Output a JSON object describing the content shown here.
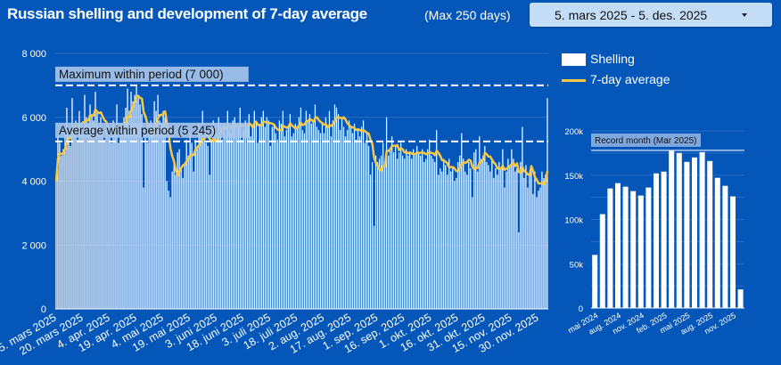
{
  "header": {
    "title": "Russian shelling and development of 7-day average",
    "note": "(Max 250 days)",
    "date_range": "5. mars 2025 - 5. des. 2025",
    "dropdown_icon": "caret-down-icon"
  },
  "legend": {
    "shelling": "Shelling",
    "average": "7-day average"
  },
  "colors": {
    "background": "#0457b9",
    "bars": "#ffffff",
    "average": "#f7c846",
    "dropdown": "#c3ddf7"
  },
  "chart_data": [
    {
      "type": "bar",
      "subtype": "daily bars with 7-day average line",
      "start_date": "2025-03-05",
      "end_date": "2025-12-05",
      "ylim": [
        0,
        8000
      ],
      "yticks": [
        "8 000",
        "6 000",
        "4 000",
        "2 000",
        "0"
      ],
      "yticks_values": [
        8000,
        6000,
        4000,
        2000,
        0
      ],
      "xticks": [
        "5. mars 2025",
        "20. mars 2025",
        "4. apr. 2025",
        "19. apr. 2025",
        "4. mai 2025",
        "19. mai 2025",
        "3. juni 2025",
        "18. juni 2025",
        "3. juli 2025",
        "18. juli 2025",
        "2. aug. 2025",
        "17. aug. 2025",
        "1. sep. 2025",
        "16. sep. 2025",
        "1. okt. 2025",
        "16. okt. 2025",
        "31. okt. 2025",
        "15. nov. 2025",
        "30. nov. 2025"
      ],
      "reference_lines": [
        {
          "label": "Maximum within period (7 000)",
          "value": 7000
        },
        {
          "label": "Average within period (5 245)",
          "value": 5245
        }
      ],
      "grid": true,
      "legend_position": "right",
      "series": [
        {
          "name": "Shelling",
          "values": [
            4000,
            5400,
            5200,
            4800,
            5000,
            5600,
            6300,
            5400,
            5100,
            6600,
            5600,
            5900,
            5300,
            6200,
            5800,
            5500,
            6700,
            6000,
            5800,
            6400,
            6100,
            5900,
            6800,
            6200,
            5700,
            6000,
            5500,
            5300,
            5600,
            5400,
            5700,
            5200,
            5900,
            5500,
            6400,
            5200,
            5800,
            5600,
            6000,
            6300,
            6900,
            6200,
            6800,
            6500,
            6700,
            7000,
            6600,
            6400,
            6100,
            3800,
            5600,
            5200,
            5800,
            5900,
            5500,
            6500,
            6200,
            6700,
            5900,
            5800,
            6200,
            6000,
            4000,
            3700,
            3500,
            4300,
            4600,
            4200,
            4900,
            5000,
            4400,
            4100,
            4500,
            5300,
            4800,
            5500,
            5200,
            4300,
            5300,
            5000,
            5800,
            5400,
            6200,
            5300,
            5200,
            5100,
            4200,
            5300,
            5900,
            5700,
            5500,
            6000,
            5800,
            5300,
            5800,
            5400,
            6200,
            5600,
            5500,
            5900,
            6000,
            5400,
            5700,
            6300,
            5300,
            5600,
            5900,
            5800,
            6100,
            5400,
            5700,
            6200,
            5900,
            5200,
            5800,
            6000,
            6200,
            5700,
            6000,
            5900,
            5100,
            5700,
            5800,
            5500,
            5300,
            5900,
            5800,
            6200,
            5400,
            5600,
            5700,
            6100,
            5400,
            5500,
            5800,
            5700,
            6000,
            6300,
            5600,
            5500,
            6200,
            5900,
            6100,
            5800,
            5900,
            6400,
            5700,
            5600,
            5500,
            5800,
            5500,
            6000,
            5700,
            6200,
            5400,
            5900,
            6400,
            6300,
            6100,
            5600,
            6000,
            5700,
            5400,
            5600,
            5900,
            5700,
            5500,
            5800,
            5300,
            5600,
            5400,
            5700,
            5900,
            5200,
            5500,
            5100,
            4200,
            4600,
            2600,
            4800,
            4600,
            4700,
            4800,
            5200,
            4500,
            6000,
            4800,
            5000,
            5400,
            4900,
            5100,
            4700,
            4900,
            5200,
            4800,
            4700,
            5000,
            4800,
            4900,
            4700,
            5000,
            4800,
            5100,
            4900,
            4800,
            5000,
            4600,
            4700,
            5000,
            5300,
            4800,
            4700,
            4600,
            5600,
            4200,
            4400,
            4300,
            4700,
            4500,
            4200,
            4700,
            4300,
            4400,
            4000,
            4100,
            4600,
            4800,
            5500,
            4700,
            4300,
            4200,
            4600,
            4400,
            3500,
            4900,
            5000,
            4300,
            5400,
            4700,
            4800,
            5100,
            4600,
            4500,
            4300,
            4700,
            4100,
            4400,
            4200,
            4600,
            4400,
            5000,
            3800,
            4300,
            4700,
            4500,
            5000,
            4700,
            4300,
            4400,
            2400,
            4600,
            5700,
            4100,
            4500,
            3800,
            4200,
            4400,
            3600,
            4300,
            3500,
            3700,
            3800,
            4300,
            4100,
            4200,
            6600
          ]
        },
        {
          "name": "7-day average",
          "derived_from": "Shelling"
        }
      ]
    },
    {
      "type": "bar",
      "categories": [
        "mai 2024",
        "jun 2024",
        "jul 2024",
        "aug. 2024",
        "sep 2024",
        "okt 2024",
        "nov. 2024",
        "des 2024",
        "jan 2025",
        "feb. 2025",
        "mar 2025",
        "apr 2025",
        "mai 2025",
        "jun 2025",
        "jul 2025",
        "aug. 2025",
        "sep 2025",
        "okt 2025",
        "nov. 2025",
        "des 2025"
      ],
      "xticks": [
        "mai 2024",
        "aug. 2024",
        "nov. 2024",
        "feb. 2025",
        "mai 2025",
        "aug. 2025",
        "nov. 2025"
      ],
      "values": [
        60000,
        106000,
        135000,
        141000,
        137000,
        132000,
        127000,
        136000,
        152000,
        154000,
        178000,
        175000,
        165000,
        170000,
        176000,
        166000,
        147000,
        138000,
        126000,
        21000
      ],
      "ylim": [
        0,
        200000
      ],
      "yticks": [
        "200k",
        "150k",
        "100k",
        "50k",
        "0"
      ],
      "yticks_values": [
        200000,
        150000,
        100000,
        50000,
        0
      ],
      "reference_lines": [
        {
          "label": "Record month (Mar 2025)",
          "value": 178000
        }
      ],
      "grid": true
    }
  ]
}
